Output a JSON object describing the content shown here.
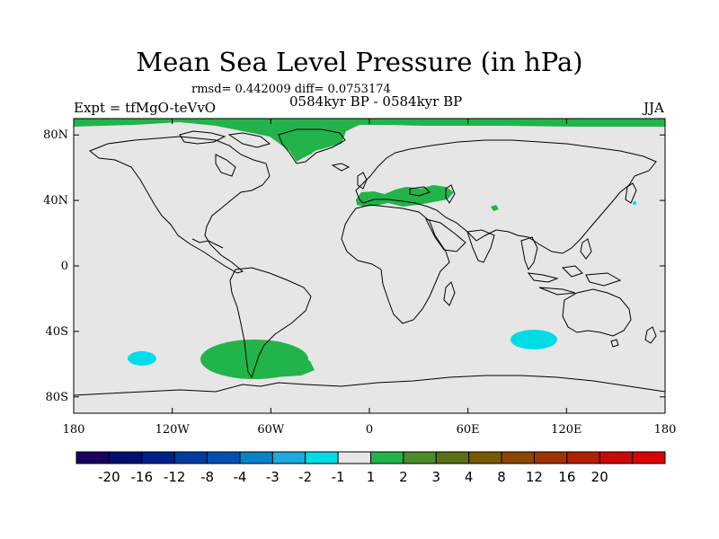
{
  "title": "Mean Sea Level Pressure (in hPa)",
  "stats": "rmsd= 0.442009 diff= 0.0753174",
  "period": "0584kyr BP - 0584kyr BP",
  "experiment": "Expt = tfMgO-teVvO",
  "season": "JJA",
  "axes": {
    "lat_labels": [
      "80N",
      "40N",
      "0",
      "40S",
      "80S"
    ],
    "lon_labels": [
      "180",
      "120W",
      "60W",
      "0",
      "60E",
      "120E",
      "180"
    ],
    "lat_values": [
      80,
      40,
      0,
      -40,
      -80
    ],
    "lon_values": [
      -180,
      -120,
      -60,
      0,
      60,
      120,
      180
    ]
  },
  "colorbar": {
    "colors": [
      "#1a0060",
      "#00106e",
      "#001e8c",
      "#003ca0",
      "#0050b4",
      "#0a82c8",
      "#1eaadc",
      "#00dce6",
      "#e6e6e6",
      "#22b44a",
      "#4a8c28",
      "#5a7014",
      "#785a00",
      "#8c4600",
      "#a03200",
      "#b41e00",
      "#c80a00",
      "#dc0000"
    ],
    "labels": [
      "-20",
      "-16",
      "-12",
      "-8",
      "-4",
      "-3",
      "-2",
      "-1",
      "1",
      "2",
      "3",
      "4",
      "8",
      "12",
      "16",
      "20"
    ]
  },
  "colors": {
    "background": "#e6e6e6",
    "positive": "#22b44a",
    "negative": "#00dce6"
  }
}
